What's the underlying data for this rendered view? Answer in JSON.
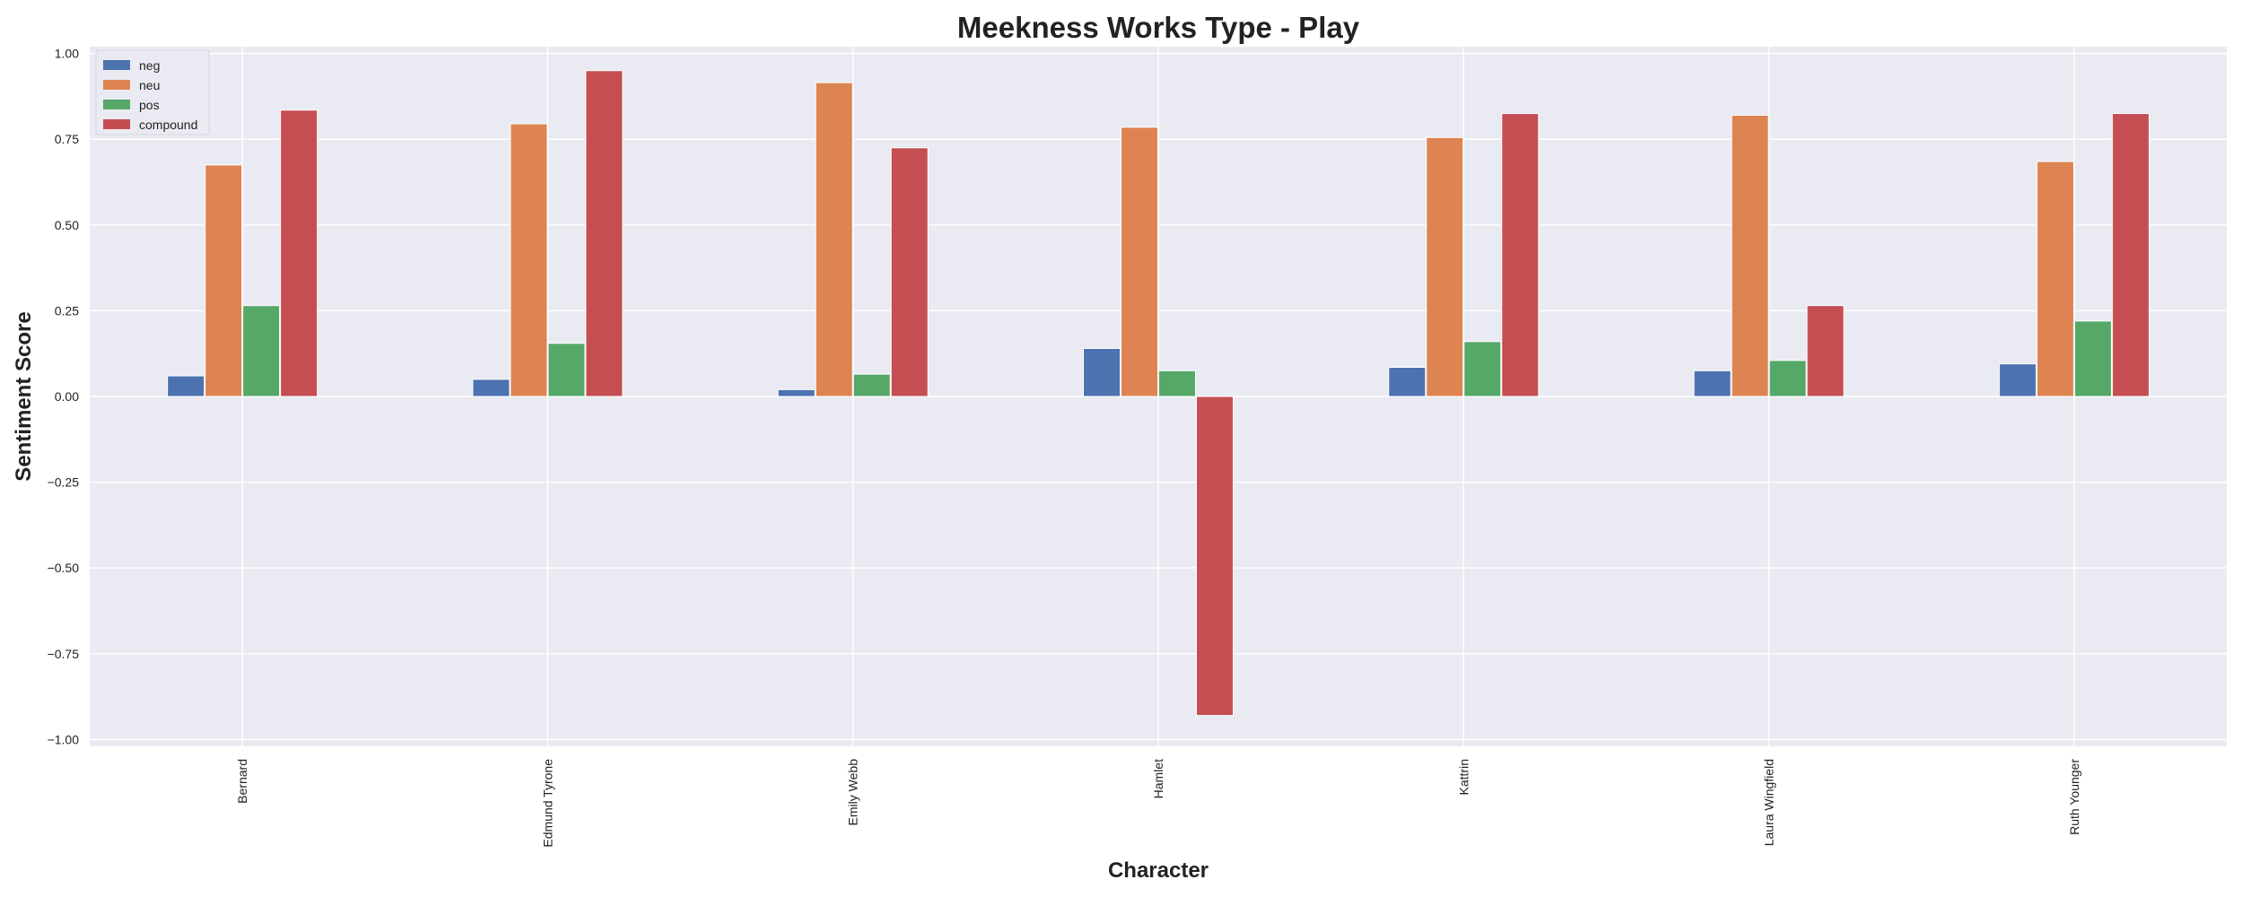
{
  "chart_data": {
    "type": "bar",
    "title": "Meekness Works Type - Play",
    "xlabel": "Character",
    "ylabel": "Sentiment Score",
    "categories": [
      "Bernard",
      "Edmund Tyrone",
      "Emily Webb",
      "Hamlet",
      "Kattrin",
      "Laura Wingfield",
      "Ruth Younger"
    ],
    "series": [
      {
        "name": "neg",
        "color": "#4c72b0",
        "values": [
          0.06,
          0.05,
          0.02,
          0.14,
          0.085,
          0.075,
          0.095
        ]
      },
      {
        "name": "neu",
        "color": "#dd8452",
        "values": [
          0.675,
          0.795,
          0.915,
          0.785,
          0.755,
          0.82,
          0.685
        ]
      },
      {
        "name": "pos",
        "color": "#55a868",
        "values": [
          0.265,
          0.155,
          0.065,
          0.075,
          0.16,
          0.105,
          0.22
        ]
      },
      {
        "name": "compound",
        "color": "#c44e52",
        "values": [
          0.835,
          0.95,
          0.725,
          -0.93,
          0.825,
          0.265,
          0.825
        ]
      }
    ],
    "ylim": [
      -1.02,
      1.02
    ],
    "yticks": [
      -1.0,
      -0.75,
      -0.5,
      -0.25,
      0.0,
      0.25,
      0.5,
      0.75,
      1.0
    ],
    "ytick_labels": [
      "−1.00",
      "−0.75",
      "−0.50",
      "−0.25",
      "0.00",
      "0.25",
      "0.50",
      "0.75",
      "1.00"
    ],
    "grid": true,
    "legend_position": "top-left",
    "background": "#eaeaf2",
    "grid_color": "#ffffff"
  }
}
